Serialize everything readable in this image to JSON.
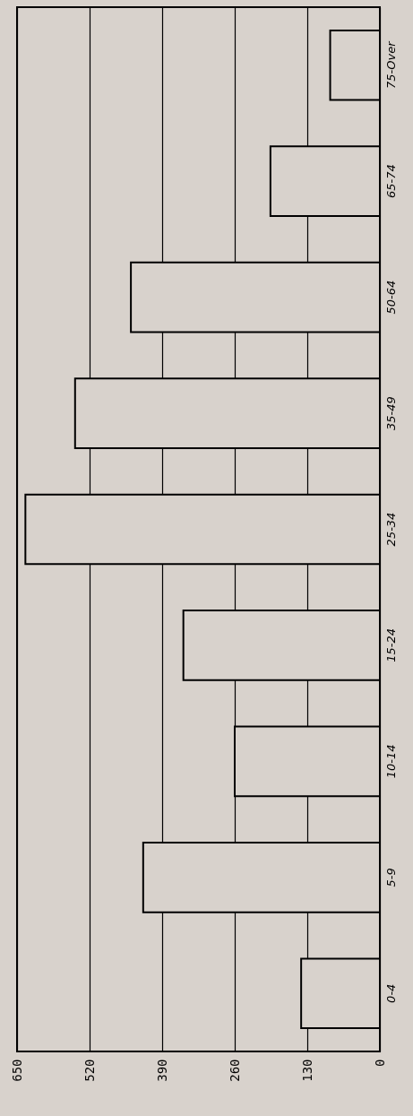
{
  "chart_data": {
    "type": "bar",
    "orientation": "horizontal",
    "categories": [
      "75-Over",
      "65-74",
      "50-64",
      "35-49",
      "25-34",
      "15-24",
      "10-14",
      "5-9",
      "0-4"
    ],
    "values": [
      89,
      196,
      446,
      546,
      635,
      352,
      260,
      424,
      141
    ],
    "color": "#d8d2cc",
    "xlim": [
      650,
      0
    ],
    "xticks": [
      650,
      520,
      390,
      260,
      130,
      0
    ],
    "grid": "x"
  }
}
